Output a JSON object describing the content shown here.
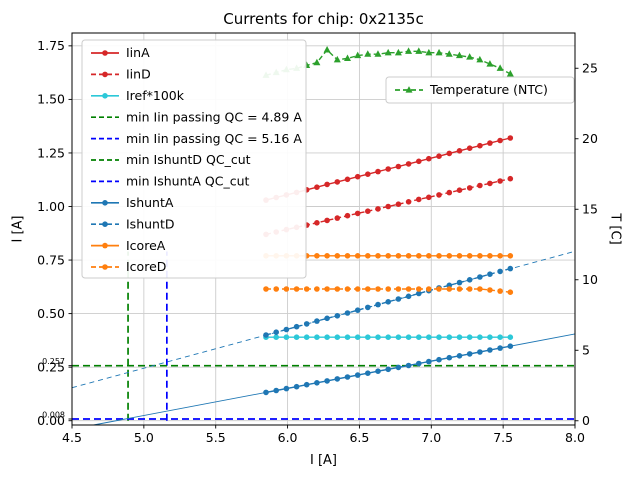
{
  "chart_data": {
    "type": "line",
    "title": "Currents for chip: 0x2135c",
    "xlabel": "I [A]",
    "ylabel_left": "I [A]",
    "ylabel_right": "T [C]",
    "xlim": [
      4.5,
      8.0
    ],
    "ylim_left": [
      -0.02,
      1.81
    ],
    "ylim_right": [
      -0.3,
      27.5
    ],
    "xticks": [
      4.5,
      5.0,
      5.5,
      6.0,
      6.5,
      7.0,
      7.5,
      8.0
    ],
    "yticks_left": [
      0.0,
      0.25,
      0.5,
      0.75,
      1.0,
      1.25,
      1.5,
      1.75
    ],
    "yticks_left_extra": [
      {
        "value": 0.257,
        "label": "0.257"
      },
      {
        "value": 0.008,
        "label": "0.008"
      }
    ],
    "yticks_right": [
      0,
      5,
      10,
      15,
      20,
      25
    ],
    "grid": true,
    "x": [
      5.85,
      5.921,
      5.992,
      6.063,
      6.133,
      6.204,
      6.275,
      6.346,
      6.417,
      6.488,
      6.558,
      6.629,
      6.7,
      6.771,
      6.842,
      6.913,
      6.983,
      7.054,
      7.125,
      7.196,
      7.267,
      7.338,
      7.408,
      7.479,
      7.55
    ],
    "series": [
      {
        "name": "IinA",
        "axis": "left",
        "color": "#d62728",
        "dash": "solid",
        "marker": "circle",
        "values": [
          1.03,
          1.042,
          1.054,
          1.066,
          1.078,
          1.09,
          1.103,
          1.115,
          1.127,
          1.139,
          1.151,
          1.163,
          1.175,
          1.187,
          1.199,
          1.211,
          1.223,
          1.235,
          1.248,
          1.26,
          1.272,
          1.284,
          1.296,
          1.308,
          1.32
        ]
      },
      {
        "name": "IinD",
        "axis": "left",
        "color": "#d62728",
        "dash": "dashed",
        "marker": "circle",
        "values": [
          0.87,
          0.881,
          0.892,
          0.903,
          0.913,
          0.924,
          0.935,
          0.946,
          0.957,
          0.968,
          0.978,
          0.989,
          1.0,
          1.011,
          1.022,
          1.033,
          1.043,
          1.054,
          1.065,
          1.076,
          1.087,
          1.098,
          1.108,
          1.119,
          1.13
        ]
      },
      {
        "name": "Iref*100k",
        "axis": "left",
        "color": "#2cc8d8",
        "dash": "solid",
        "marker": "circle",
        "values": [
          0.39,
          0.39,
          0.39,
          0.39,
          0.39,
          0.39,
          0.39,
          0.39,
          0.39,
          0.39,
          0.39,
          0.39,
          0.39,
          0.39,
          0.39,
          0.39,
          0.39,
          0.39,
          0.39,
          0.39,
          0.39,
          0.39,
          0.39,
          0.39,
          0.39
        ]
      },
      {
        "name": "IshuntA",
        "axis": "left",
        "color": "#1f77b4",
        "dash": "solid",
        "marker": "circle",
        "values": [
          0.132,
          0.141,
          0.15,
          0.159,
          0.168,
          0.177,
          0.186,
          0.195,
          0.204,
          0.213,
          0.222,
          0.231,
          0.24,
          0.249,
          0.258,
          0.267,
          0.276,
          0.285,
          0.294,
          0.303,
          0.312,
          0.321,
          0.33,
          0.339,
          0.348
        ]
      },
      {
        "name": "IshuntD",
        "axis": "left",
        "color": "#1f77b4",
        "dash": "dashed",
        "marker": "circle",
        "values": [
          0.4,
          0.413,
          0.426,
          0.439,
          0.452,
          0.465,
          0.478,
          0.49,
          0.503,
          0.516,
          0.529,
          0.542,
          0.555,
          0.568,
          0.581,
          0.594,
          0.607,
          0.62,
          0.632,
          0.645,
          0.658,
          0.671,
          0.684,
          0.697,
          0.71
        ]
      },
      {
        "name": "IcoreA",
        "axis": "left",
        "color": "#ff7f0e",
        "dash": "solid",
        "marker": "circle",
        "values": [
          0.77,
          0.77,
          0.77,
          0.77,
          0.77,
          0.77,
          0.77,
          0.77,
          0.77,
          0.77,
          0.77,
          0.77,
          0.77,
          0.77,
          0.77,
          0.77,
          0.77,
          0.77,
          0.77,
          0.77,
          0.77,
          0.77,
          0.77,
          0.77,
          0.77
        ]
      },
      {
        "name": "IcoreD",
        "axis": "left",
        "color": "#ff7f0e",
        "dash": "dashed",
        "marker": "circle",
        "values": [
          0.615,
          0.615,
          0.615,
          0.615,
          0.615,
          0.615,
          0.615,
          0.615,
          0.615,
          0.615,
          0.615,
          0.615,
          0.615,
          0.615,
          0.615,
          0.615,
          0.615,
          0.615,
          0.615,
          0.615,
          0.615,
          0.615,
          0.61,
          0.605,
          0.6
        ]
      },
      {
        "name": "Temperature (NTC)",
        "axis": "right",
        "color": "#2ca02c",
        "dash": "dashed",
        "marker": "triangle",
        "values": [
          24.5,
          24.7,
          24.9,
          25.0,
          25.2,
          25.4,
          26.3,
          25.6,
          25.7,
          25.9,
          26.0,
          26.0,
          26.1,
          26.1,
          26.2,
          26.2,
          26.1,
          26.1,
          26.0,
          25.9,
          25.8,
          25.6,
          25.3,
          25.0,
          24.6
        ]
      }
    ],
    "ref_lines": [
      {
        "type": "vline",
        "x": 4.89,
        "ymin": 0.0,
        "ymax": 0.79,
        "color": "#008000",
        "dash": "dashed",
        "label": "min Iin passing QC = 4.89 A"
      },
      {
        "type": "vline",
        "x": 5.16,
        "ymin": 0.0,
        "ymax": 0.79,
        "color": "#0000ff",
        "dash": "dashed",
        "label": "min Iin passing QC = 5.16 A"
      },
      {
        "type": "hline",
        "y": 0.257,
        "color": "#008000",
        "dash": "dashed",
        "label": "min IshuntD QC_cut"
      },
      {
        "type": "hline",
        "y": 0.008,
        "color": "#0000ff",
        "dash": "dashed",
        "label": "min IshuntA QC_cut"
      }
    ],
    "fit_lines": [
      {
        "x1": 4.65,
        "y1": -0.02,
        "x2": 8.0,
        "y2": 0.405,
        "color": "#1f77b4",
        "dash": "solid",
        "width": 0.9
      },
      {
        "x1": 4.5,
        "y1": 0.154,
        "x2": 8.0,
        "y2": 0.791,
        "color": "#1f77b4",
        "dash": "dashed",
        "width": 0.9
      }
    ],
    "legend": {
      "position": "upper-left",
      "items": [
        {
          "label": "IinA",
          "color": "#d62728",
          "dash": "solid",
          "marker": "circle"
        },
        {
          "label": "IinD",
          "color": "#d62728",
          "dash": "dashed",
          "marker": "circle"
        },
        {
          "label": "Iref*100k",
          "color": "#2cc8d8",
          "dash": "solid",
          "marker": "circle"
        },
        {
          "label": "min Iin passing QC = 4.89 A",
          "color": "#008000",
          "dash": "dashed",
          "marker": "none"
        },
        {
          "label": "min Iin passing QC = 5.16 A",
          "color": "#0000ff",
          "dash": "dashed",
          "marker": "none"
        },
        {
          "label": "min IshuntD QC_cut",
          "color": "#008000",
          "dash": "dashed",
          "marker": "none"
        },
        {
          "label": "min IshuntA QC_cut",
          "color": "#0000ff",
          "dash": "dashed",
          "marker": "none"
        },
        {
          "label": "IshuntA",
          "color": "#1f77b4",
          "dash": "solid",
          "marker": "circle"
        },
        {
          "label": "IshuntD",
          "color": "#1f77b4",
          "dash": "dashed",
          "marker": "circle"
        },
        {
          "label": "IcoreA",
          "color": "#ff7f0e",
          "dash": "solid",
          "marker": "circle"
        },
        {
          "label": "IcoreD",
          "color": "#ff7f0e",
          "dash": "dashed",
          "marker": "circle"
        }
      ]
    },
    "legend2": {
      "position": "upper-right",
      "items": [
        {
          "label": "Temperature (NTC)",
          "color": "#2ca02c",
          "dash": "dashed",
          "marker": "triangle"
        }
      ]
    }
  }
}
